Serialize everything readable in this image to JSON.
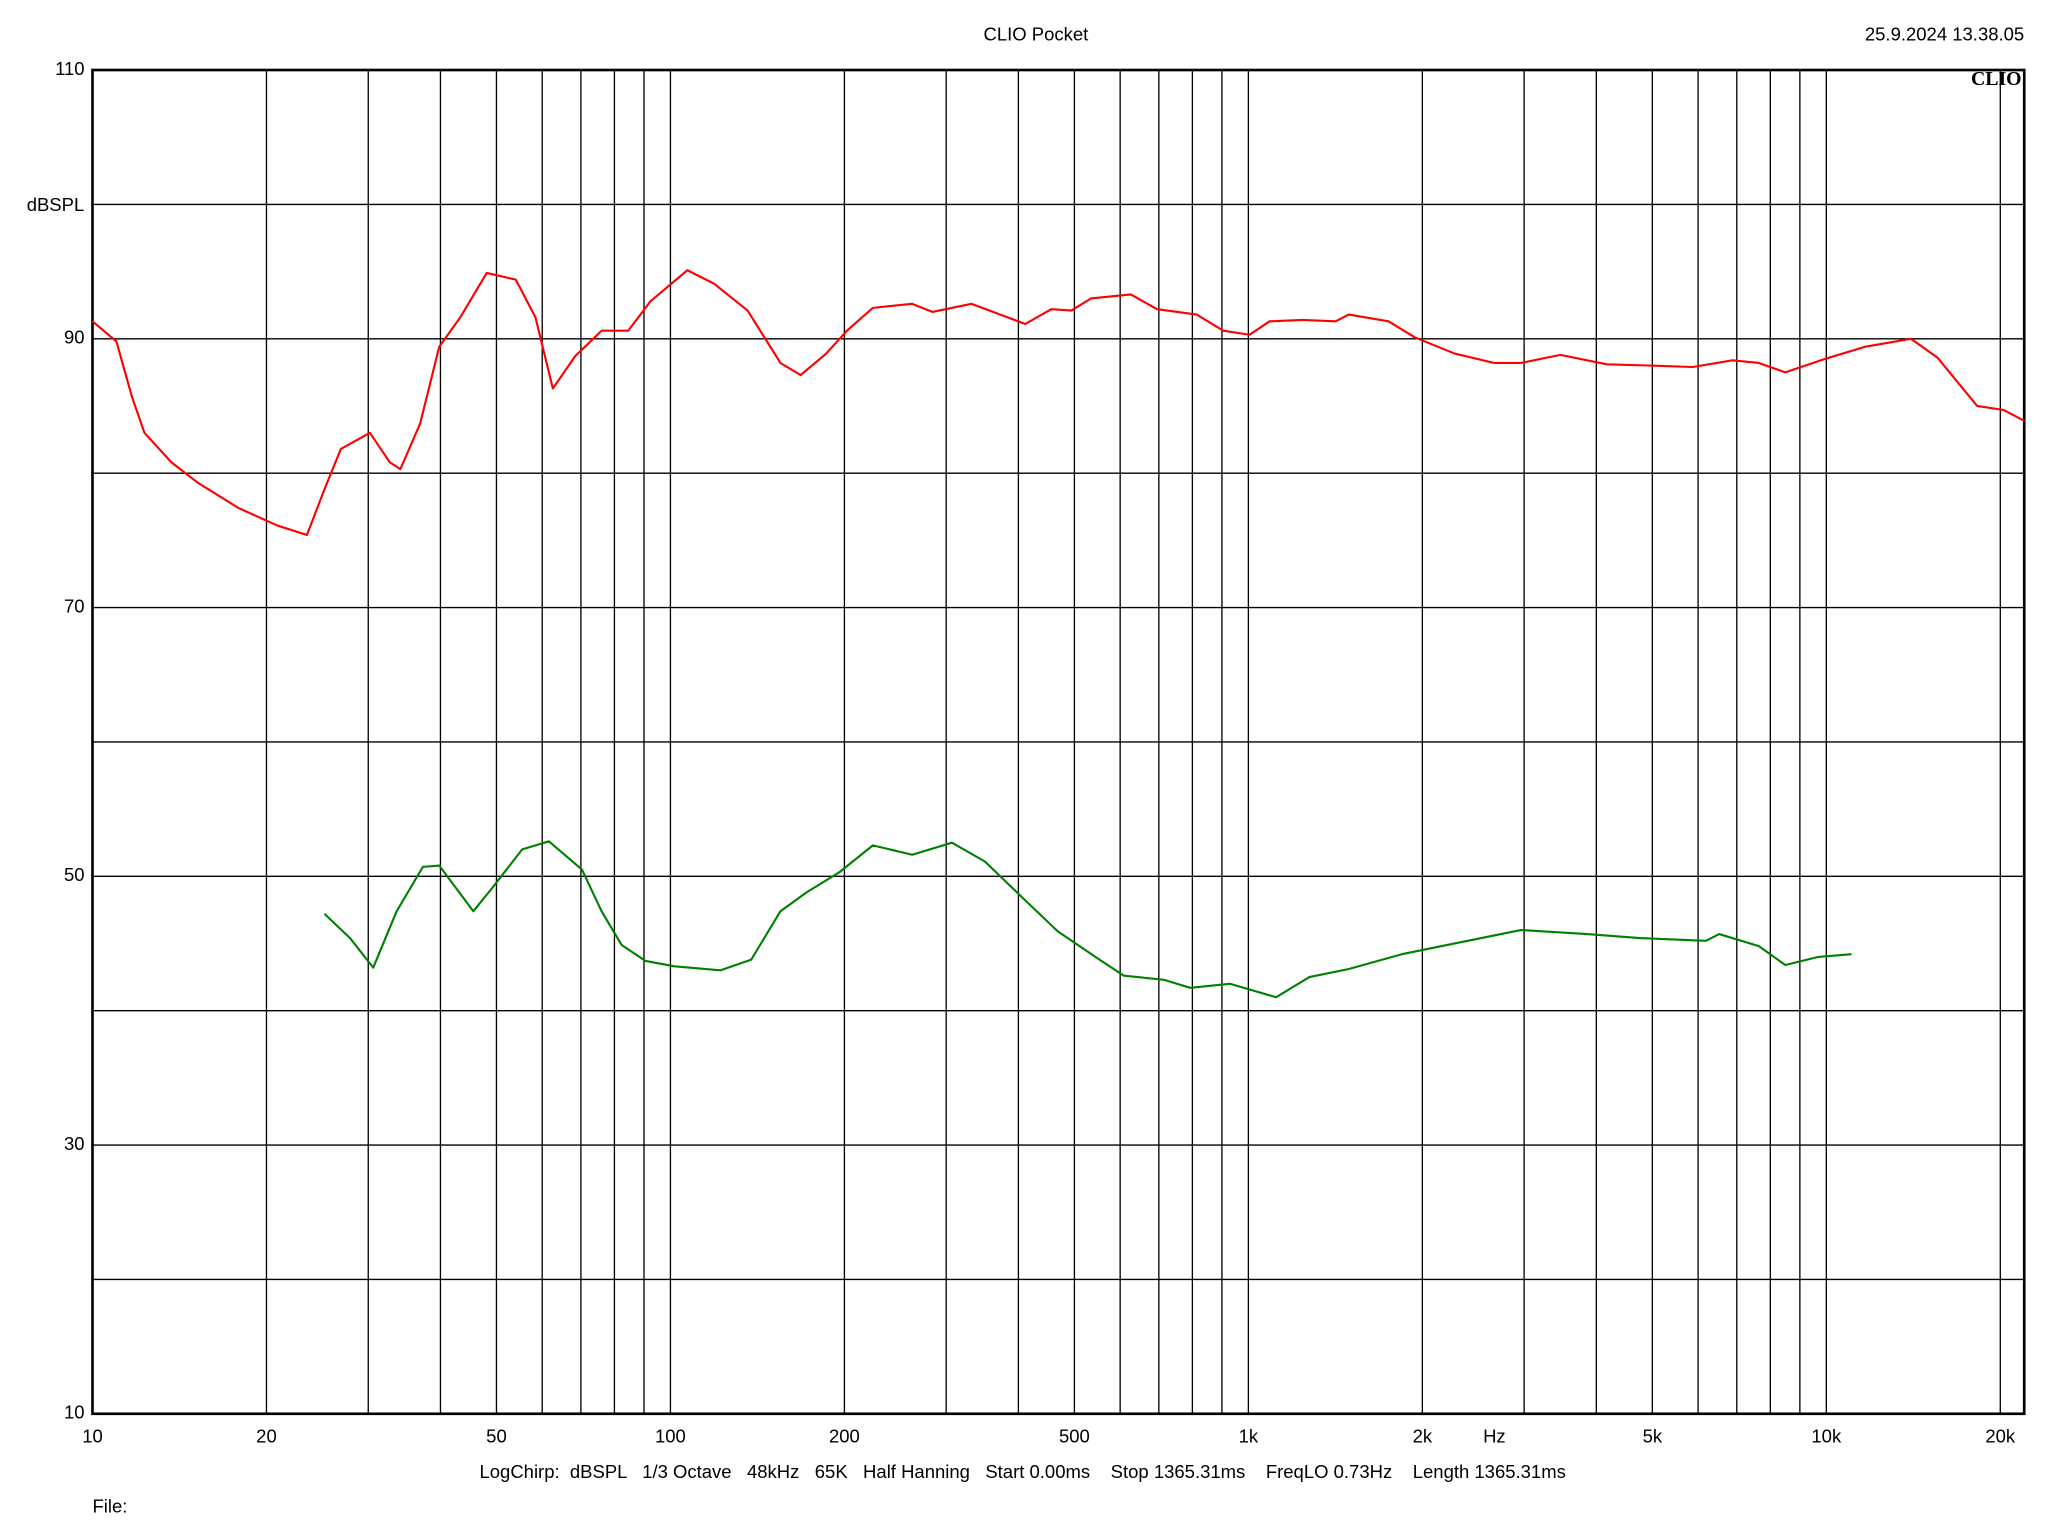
{
  "chart_data": {
    "type": "line",
    "title": "CLIO Pocket",
    "timestamp": "25.9.2024 13.38.05",
    "logo": "CLIO",
    "y_label": "dBSPL",
    "x_label": "Hz",
    "settings": "LogChirp:  dBSPL   1/3 Octave   48kHz   65K   Half Hanning   Start 0.00ms    Stop 1365.31ms    FreqLO 0.73Hz    Length 1365.31ms",
    "file_label": "File:",
    "log_x": true,
    "grid": true,
    "xlim": [
      10,
      22000
    ],
    "ylim": [
      10,
      110
    ],
    "xticks": [
      10,
      20,
      50,
      100,
      200,
      500,
      {
        "value": 1000,
        "label": "1k"
      },
      {
        "value": 2000,
        "label": "2k"
      },
      {
        "value": 5000,
        "label": "5k"
      },
      {
        "value": 10000,
        "label": "10k"
      },
      {
        "value": 20000,
        "label": "20k"
      }
    ],
    "x_minor_ticks": [
      30,
      40,
      60,
      70,
      80,
      90,
      300,
      400,
      600,
      700,
      800,
      900,
      3000,
      4000,
      6000,
      7000,
      8000,
      9000
    ],
    "yticks": [
      10,
      30,
      50,
      70,
      90,
      110
    ],
    "y_minor_ticks": [
      20,
      40,
      60,
      80,
      100
    ],
    "series": [
      {
        "color": "#ff0000",
        "x": [
          10,
          11,
          11.7,
          12.3,
          13.7,
          15.2,
          17.9,
          20.9,
          23.5,
          25.2,
          26.9,
          30.2,
          32.7,
          34.1,
          36.9,
          39.8,
          43.3,
          48.1,
          54,
          58.4,
          62.6,
          68.4,
          76,
          84.5,
          92.4,
          107,
          119,
          136,
          155,
          168,
          186,
          202,
          224,
          262,
          284,
          332,
          411,
          456,
          494,
          534,
          626,
          695,
          814,
          905,
          1005,
          1088,
          1241,
          1416,
          1492,
          1748,
          1942,
          2275,
          2666,
          2961,
          3467,
          4170,
          5015,
          5873,
          6879,
          7642,
          8492,
          9947,
          11650,
          14010,
          15570,
          18240,
          20260,
          22000
        ],
        "values": [
          91.3,
          89.8,
          85.7,
          83,
          80.8,
          79.3,
          77.4,
          76.1,
          75.4,
          78.8,
          81.8,
          83,
          80.8,
          80.3,
          83.7,
          89.4,
          91.6,
          94.9,
          94.4,
          91.6,
          86.3,
          88.7,
          90.6,
          90.6,
          92.8,
          95.1,
          94.1,
          92.1,
          88.2,
          87.3,
          88.9,
          90.6,
          92.3,
          92.6,
          92,
          92.6,
          91.1,
          92.2,
          92.1,
          93,
          93.3,
          92.2,
          91.8,
          90.6,
          90.3,
          91.3,
          91.4,
          91.3,
          91.8,
          91.3,
          90.1,
          88.9,
          88.2,
          88.2,
          88.8,
          88.1,
          88,
          87.9,
          88.4,
          88.2,
          87.5,
          88.5,
          89.4,
          90,
          88.6,
          85,
          84.7,
          83.9
        ]
      },
      {
        "color": "#008000",
        "x": [
          25.2,
          27.9,
          30.6,
          33.6,
          37.3,
          39.8,
          42.6,
          45.6,
          49.1,
          55.4,
          61.6,
          70.3,
          76,
          82.3,
          90.5,
          101.6,
          122,
          138,
          155,
          172,
          196,
          224,
          262,
          307,
          350,
          400,
          468,
          548,
          609,
          714,
          793,
          929,
          1117,
          1275,
          1492,
          1843,
          2275,
          2961,
          3853,
          4757,
          6191,
          6525,
          7642,
          8492,
          9690,
          11060
        ],
        "values": [
          47.2,
          45.4,
          43.2,
          47.4,
          50.7,
          50.8,
          49.1,
          47.4,
          49.1,
          52,
          52.6,
          50.5,
          47.4,
          44.9,
          43.7,
          43.3,
          43,
          43.8,
          47.4,
          48.8,
          50.3,
          52.3,
          51.6,
          52.5,
          51.1,
          48.7,
          45.9,
          43.9,
          42.6,
          42.3,
          41.7,
          42,
          41,
          42.5,
          43.1,
          44.2,
          45,
          46,
          45.7,
          45.4,
          45.2,
          45.7,
          44.8,
          43.4,
          44,
          44.2
        ]
      }
    ]
  }
}
